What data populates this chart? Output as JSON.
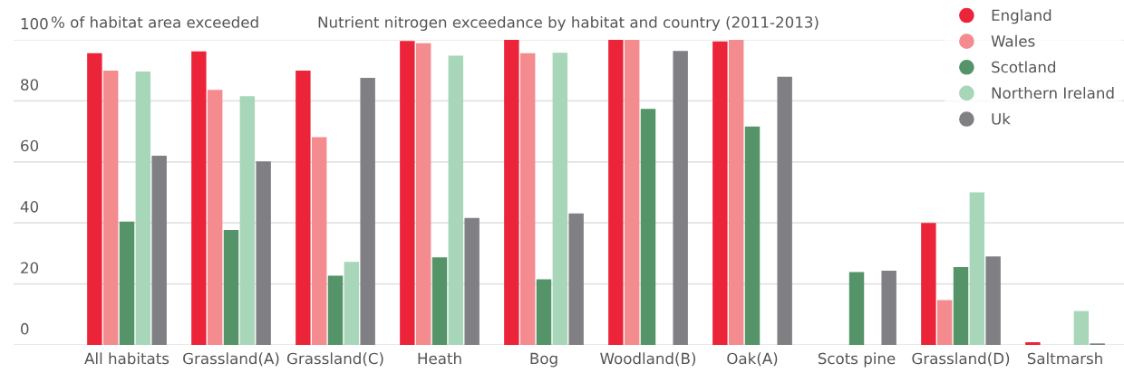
{
  "chart_data": {
    "type": "bar",
    "title": "Nutrient nitrogen exceedance by habitat and country (2011-2013)",
    "ylabel": "% of habitat area exceeded",
    "categories": [
      "All habitats",
      "Grassland(A)",
      "Grassland(C)",
      "Heath",
      "Bog",
      "Woodland(B)",
      "Oak(A)",
      "Scots pine",
      "Grassland(D)",
      "Saltmarsh"
    ],
    "series": [
      {
        "name": "England",
        "color": "#ec2439",
        "values": [
          95.6,
          96.2,
          89.9,
          99.6,
          100,
          100,
          99.5,
          null,
          40,
          0.9
        ]
      },
      {
        "name": "Wales",
        "color": "#f48b8f",
        "values": [
          89.9,
          83.6,
          68.1,
          98.9,
          95.6,
          100,
          100,
          null,
          14.7,
          null
        ]
      },
      {
        "name": "Scotland",
        "color": "#559469",
        "values": [
          40.4,
          37.7,
          22.7,
          28.7,
          21.5,
          77.4,
          71.6,
          23.9,
          25.5,
          null
        ]
      },
      {
        "name": "Northern Ireland",
        "color": "#a7d6b8",
        "values": [
          89.6,
          81.5,
          27.2,
          94.8,
          95.8,
          null,
          null,
          null,
          50,
          11.1
        ]
      },
      {
        "name": "Uk",
        "color": "#808084",
        "values": [
          62,
          60.2,
          87.5,
          41.6,
          43.1,
          96.4,
          87.9,
          24.3,
          29,
          0.5
        ]
      }
    ],
    "ylim": [
      0,
      100
    ],
    "yticks": [
      0,
      20,
      40,
      60,
      80,
      100
    ],
    "grid": "y",
    "legend": "top right"
  }
}
